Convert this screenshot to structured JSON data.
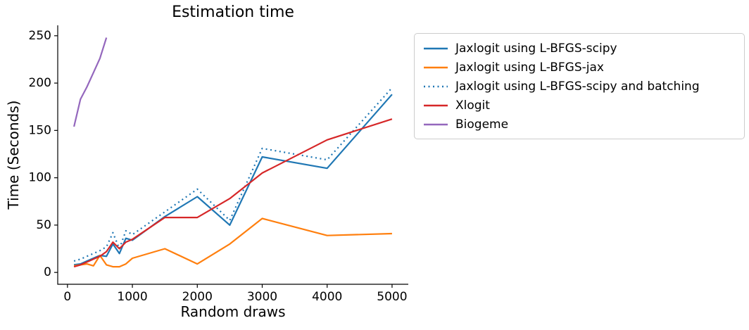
{
  "chart_data": {
    "type": "line",
    "title": "Estimation time",
    "xlabel": "Random draws",
    "ylabel": "Time (Seconds)",
    "xlim": [
      -150,
      5250
    ],
    "ylim": [
      -12.5,
      261
    ],
    "xticks": [
      0,
      1000,
      2000,
      3000,
      4000,
      5000
    ],
    "yticks": [
      0,
      50,
      100,
      150,
      200,
      250
    ],
    "grid": false,
    "legend_position": "outside-right",
    "x": [
      100,
      200,
      300,
      400,
      500,
      600,
      700,
      800,
      900,
      1000,
      1500,
      2000,
      2500,
      3000,
      4000,
      5000
    ],
    "series": [
      {
        "name": "Jaxlogit using L-BFGS-scipy",
        "color": "#1f77b4",
        "style": "solid",
        "values": [
          8,
          9,
          12,
          15,
          18,
          17,
          30,
          20,
          36,
          34,
          59,
          80,
          50,
          122,
          110,
          188
        ]
      },
      {
        "name": "Jaxlogit using L-BFGS-jax",
        "color": "#ff7f0e",
        "style": "solid",
        "values": [
          7,
          8,
          9,
          7,
          18,
          8,
          6,
          6,
          9,
          15,
          25,
          9,
          30,
          57,
          39,
          41
        ]
      },
      {
        "name": "Jaxlogit using L-BFGS-scipy and batching",
        "color": "#1f77b4",
        "style": "dotted",
        "values": [
          12,
          14,
          17,
          20,
          23,
          27,
          42,
          25,
          44,
          40,
          64,
          88,
          55,
          131,
          119,
          195
        ]
      },
      {
        "name": "Xlogit",
        "color": "#d62728",
        "style": "solid",
        "values": [
          6,
          8,
          11,
          14,
          17,
          22,
          32,
          25,
          32,
          35,
          58,
          58,
          78,
          105,
          140,
          162
        ]
      },
      {
        "name": "Biogeme",
        "color": "#9467bd",
        "style": "solid",
        "x": [
          100,
          200,
          300,
          400,
          500,
          600
        ],
        "values": [
          154,
          183,
          196,
          211,
          226,
          248
        ]
      }
    ]
  }
}
